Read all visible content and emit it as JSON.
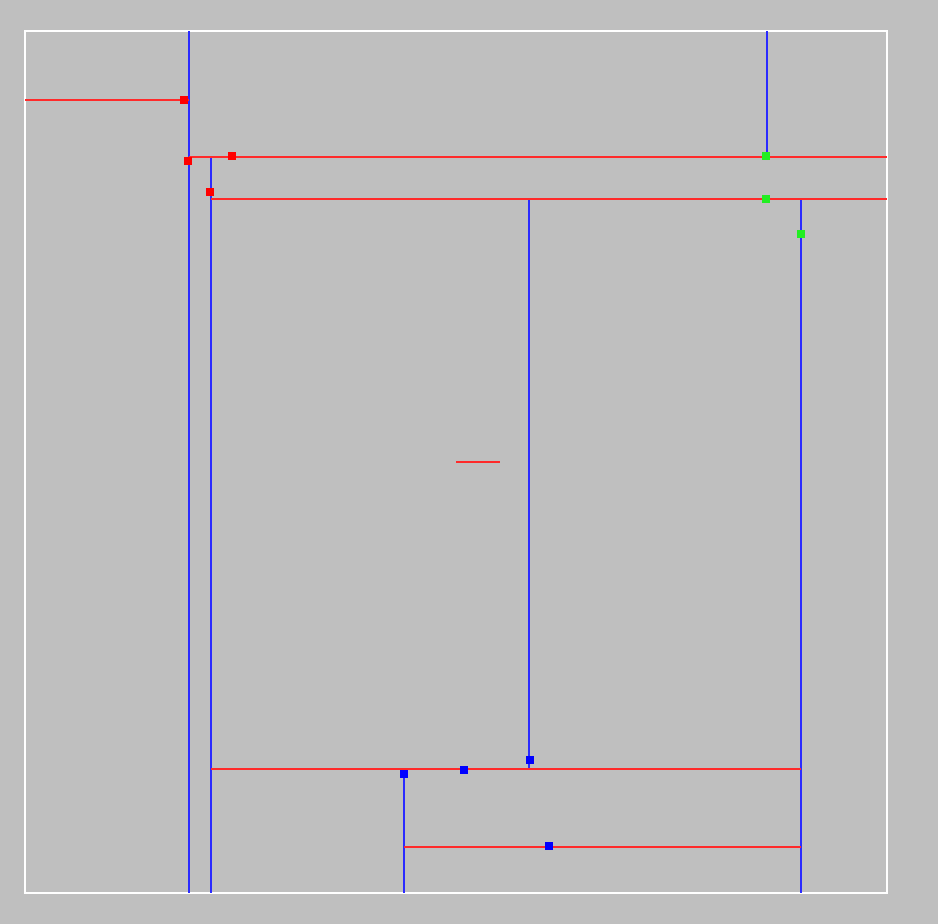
{
  "colors": {
    "background": "#bfbfbf",
    "frame": "#ffffff",
    "horizontal_segment": "#ff2a2a",
    "vertical_segment": "#2b2bff",
    "marker_red": "#ff0000",
    "marker_blue": "#0000ff",
    "marker_green": "#22ee22"
  },
  "diagram": {
    "frame_count": 1,
    "horizontal_segment_count": 7,
    "vertical_segment_count": 7,
    "marker_count": 12
  }
}
